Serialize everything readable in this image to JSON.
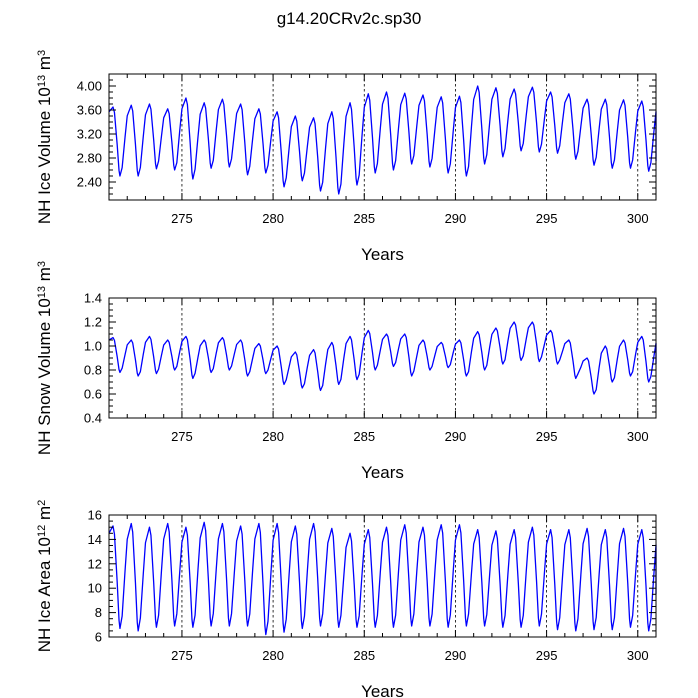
{
  "page": {
    "title": "g14.20CRv2c.sp30"
  },
  "chart_data": [
    {
      "id": "ice-volume",
      "type": "line",
      "ylabel": {
        "main": "NH Ice Volume 10",
        "sup": "13",
        "unit": " m",
        "unit_sup": "3"
      },
      "xlabel": "Years",
      "xlim": [
        271.0,
        301.0
      ],
      "ylim": [
        2.1,
        4.2
      ],
      "x_ticks": [
        275,
        280,
        285,
        290,
        295,
        300
      ],
      "x_tick_labels": [
        "275",
        "280",
        "285",
        "290",
        "295",
        "300"
      ],
      "y_ticks": [
        2.4,
        2.8,
        3.2,
        3.6,
        4.0
      ],
      "y_tick_labels": [
        "2.40",
        "2.80",
        "3.20",
        "3.60",
        "4.00"
      ],
      "grid_vertical_dashed": [
        275,
        280,
        285,
        290,
        295,
        300
      ],
      "series": [
        {
          "name": "NH Ice Volume",
          "color": "#0000ff",
          "annual_max": [
            3.65,
            3.68,
            3.7,
            3.62,
            3.8,
            3.72,
            3.78,
            3.7,
            3.62,
            3.57,
            3.5,
            3.47,
            3.57,
            3.72,
            3.87,
            3.9,
            3.88,
            3.85,
            3.82,
            3.83,
            4.0,
            3.97,
            3.95,
            3.98,
            3.9,
            3.87,
            3.78,
            3.78,
            3.77,
            3.75
          ],
          "annual_min": [
            2.5,
            2.5,
            2.62,
            2.6,
            2.45,
            2.63,
            2.65,
            2.52,
            2.55,
            2.32,
            2.42,
            2.25,
            2.2,
            2.35,
            2.55,
            2.6,
            2.7,
            2.65,
            2.55,
            2.5,
            2.7,
            2.82,
            2.92,
            2.9,
            2.88,
            2.78,
            2.68,
            2.63,
            2.63,
            2.58
          ],
          "end_value": 2.75
        }
      ]
    },
    {
      "id": "snow-volume",
      "type": "line",
      "ylabel": {
        "main": "NH Snow Volume 10",
        "sup": "13",
        "unit": " m",
        "unit_sup": "3"
      },
      "xlabel": "Years",
      "xlim": [
        271.0,
        301.0
      ],
      "ylim": [
        0.4,
        1.4
      ],
      "x_ticks": [
        275,
        280,
        285,
        290,
        295,
        300
      ],
      "x_tick_labels": [
        "275",
        "280",
        "285",
        "290",
        "295",
        "300"
      ],
      "y_ticks": [
        0.4,
        0.6,
        0.8,
        1.0,
        1.2,
        1.4
      ],
      "y_tick_labels": [
        "0.4",
        "0.6",
        "0.8",
        "1.0",
        "1.2",
        "1.4"
      ],
      "grid_vertical_dashed": [
        275,
        280,
        285,
        290,
        295,
        300
      ],
      "series": [
        {
          "name": "NH Snow Volume",
          "color": "#0000ff",
          "annual_max": [
            1.07,
            1.05,
            1.08,
            1.05,
            1.08,
            1.05,
            1.07,
            1.05,
            1.02,
            1.0,
            0.95,
            0.97,
            1.03,
            1.08,
            1.13,
            1.1,
            1.1,
            1.05,
            1.03,
            1.05,
            1.12,
            1.15,
            1.2,
            1.2,
            1.13,
            1.05,
            0.9,
            1.0,
            1.05,
            1.08
          ],
          "annual_min": [
            0.78,
            0.75,
            0.77,
            0.8,
            0.73,
            0.78,
            0.8,
            0.75,
            0.77,
            0.68,
            0.65,
            0.63,
            0.68,
            0.72,
            0.8,
            0.83,
            0.75,
            0.8,
            0.82,
            0.75,
            0.8,
            0.85,
            0.88,
            0.87,
            0.85,
            0.73,
            0.6,
            0.7,
            0.75,
            0.7
          ],
          "end_value": 0.85
        }
      ]
    },
    {
      "id": "ice-area",
      "type": "line",
      "ylabel": {
        "main": "NH Ice Area 10",
        "sup": "12",
        "unit": " m",
        "unit_sup": "2"
      },
      "xlabel": "Years",
      "xlim": [
        271.0,
        301.0
      ],
      "ylim": [
        6,
        16
      ],
      "x_ticks": [
        275,
        280,
        285,
        290,
        295,
        300
      ],
      "x_tick_labels": [
        "275",
        "280",
        "285",
        "290",
        "295",
        "300"
      ],
      "y_ticks": [
        6,
        8,
        10,
        12,
        14,
        16
      ],
      "y_tick_labels": [
        "6",
        "8",
        "10",
        "12",
        "14",
        "16"
      ],
      "grid_vertical_dashed": [
        275,
        280,
        285,
        290,
        295,
        300
      ],
      "series": [
        {
          "name": "NH Ice Area",
          "color": "#0000ff",
          "annual_max": [
            15.1,
            15.3,
            15.0,
            15.3,
            15.0,
            15.4,
            15.3,
            15.1,
            15.3,
            15.3,
            15.1,
            15.3,
            14.9,
            14.5,
            14.8,
            15.0,
            15.2,
            15.0,
            15.2,
            15.2,
            14.8,
            14.7,
            14.8,
            15.0,
            14.8,
            14.8,
            14.9,
            14.8,
            14.9,
            14.8
          ],
          "annual_min": [
            6.7,
            6.5,
            6.8,
            6.9,
            6.8,
            6.9,
            6.9,
            6.9,
            6.2,
            6.4,
            6.7,
            6.9,
            6.8,
            6.8,
            6.8,
            6.8,
            6.9,
            6.9,
            6.8,
            6.9,
            6.9,
            6.8,
            6.8,
            6.9,
            6.6,
            6.5,
            6.6,
            6.6,
            6.8,
            6.5
          ],
          "end_value": 9.5
        }
      ]
    }
  ]
}
